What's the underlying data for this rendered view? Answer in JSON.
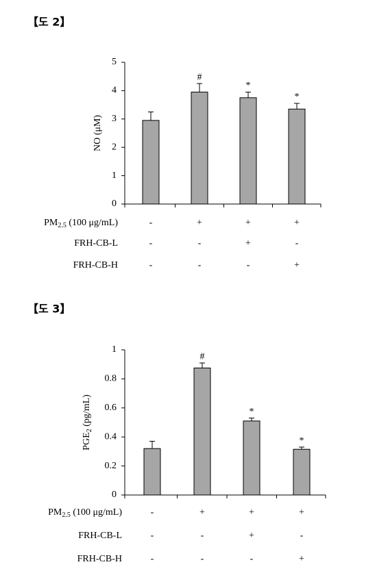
{
  "chart_data": [
    {
      "type": "bar",
      "figure_label": "【도 2】",
      "ylabel": "NO (μM)",
      "categories": [
        null,
        null,
        null,
        null
      ],
      "values": [
        2.95,
        3.95,
        3.75,
        3.35
      ],
      "errors": [
        0.3,
        0.3,
        0.2,
        0.2
      ],
      "annotations": [
        null,
        "#",
        "*",
        "*"
      ],
      "color": "#a6a6a6",
      "ylim": [
        0,
        5
      ],
      "yticks": [
        0,
        1,
        2,
        3,
        4,
        5
      ],
      "treatments": [
        {
          "label": {
            "text": "PM",
            "sub": "2.5",
            "rest": " (100 μg/mL)"
          },
          "signs": [
            "-",
            "+",
            "+",
            "+"
          ]
        },
        {
          "label": "FRH-CB-L",
          "signs": [
            "-",
            "-",
            "+",
            "-"
          ]
        },
        {
          "label": "FRH-CB-H",
          "signs": [
            "-",
            "-",
            "-",
            "+"
          ]
        }
      ]
    },
    {
      "type": "bar",
      "figure_label": "【도 3】",
      "ylabel": {
        "text": "PGE",
        "sub": "2",
        "rest": " (pg/mL)"
      },
      "categories": [
        null,
        null,
        null,
        null
      ],
      "values": [
        0.32,
        0.875,
        0.51,
        0.315
      ],
      "errors": [
        0.05,
        0.035,
        0.02,
        0.015
      ],
      "annotations": [
        null,
        "#",
        "*",
        "*"
      ],
      "color": "#a6a6a6",
      "ylim": [
        0,
        1
      ],
      "yticks": [
        0,
        0.2,
        0.4,
        0.6,
        0.8,
        1
      ],
      "treatments": [
        {
          "label": {
            "text": "PM",
            "sub": "2.5",
            "rest": " (100 μg/mL)"
          },
          "signs": [
            "-",
            "+",
            "+",
            "+"
          ]
        },
        {
          "label": "FRH-CB-L",
          "signs": [
            "-",
            "-",
            "+",
            "-"
          ]
        },
        {
          "label": "FRH-CB-H",
          "signs": [
            "-",
            "-",
            "-",
            "+"
          ]
        }
      ]
    }
  ]
}
